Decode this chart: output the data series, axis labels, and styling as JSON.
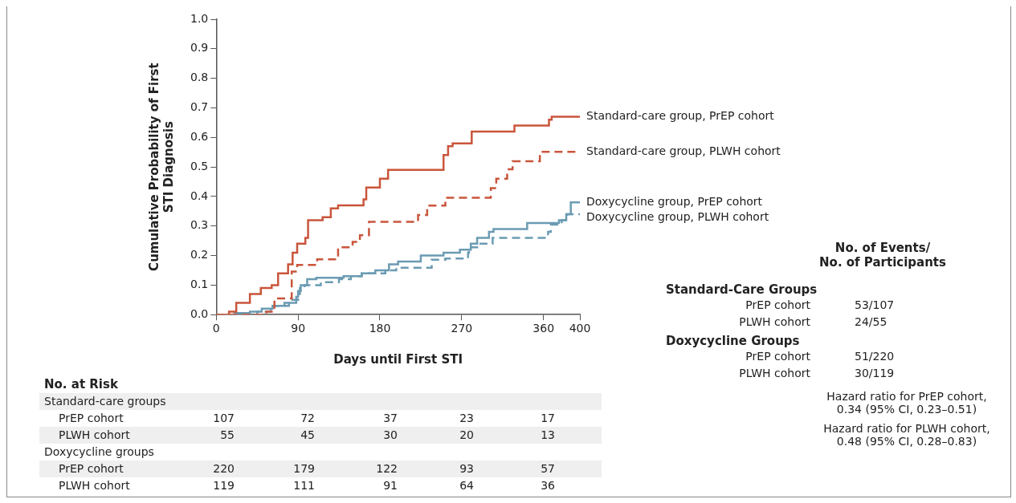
{
  "chart_data": {
    "type": "step",
    "xlabel": "Days until First STI",
    "ylabel": "Cumulative Probability of First\nSTI Diagnosis",
    "xlim": [
      0,
      400
    ],
    "xticks": [
      0,
      90,
      180,
      270,
      360,
      400
    ],
    "ylim": [
      0,
      1
    ],
    "yticks": [
      {
        "value": 0,
        "label": "0.0"
      },
      0.1,
      0.2,
      0.3,
      0.4,
      0.5,
      0.6,
      0.7,
      0.8,
      0.9,
      {
        "value": 1,
        "label": "1.0"
      }
    ],
    "grid": false,
    "legend": false,
    "series": [
      {
        "name": "Standard-care group, PrEP cohort",
        "color": "#c9553b",
        "line_style": "solid",
        "x": [
          0,
          14,
          22,
          37,
          49,
          61,
          68,
          79,
          84,
          89,
          98,
          101,
          117,
          126,
          134,
          162,
          165,
          180,
          189,
          250,
          255,
          260,
          281,
          328,
          366,
          369,
          400
        ],
        "values": [
          0,
          0.01,
          0.04,
          0.07,
          0.09,
          0.1,
          0.14,
          0.17,
          0.21,
          0.24,
          0.26,
          0.32,
          0.33,
          0.36,
          0.37,
          0.39,
          0.43,
          0.46,
          0.49,
          0.54,
          0.57,
          0.58,
          0.62,
          0.64,
          0.66,
          0.67,
          0.67
        ]
      },
      {
        "name": "Standard-care group, PLWH cohort",
        "color": "#c9553b",
        "line_style": "dashed",
        "x": [
          0,
          55,
          64,
          83,
          89,
          111,
          134,
          150,
          158,
          168,
          222,
          232,
          252,
          302,
          308,
          320,
          326,
          356,
          400
        ],
        "values": [
          0,
          0.01,
          0.055,
          0.146,
          0.168,
          0.187,
          0.228,
          0.246,
          0.269,
          0.314,
          0.337,
          0.369,
          0.396,
          0.428,
          0.46,
          0.492,
          0.519,
          0.551,
          0.551
        ]
      },
      {
        "name": "Doxycycline group, PrEP cohort",
        "color": "#6b9bb2",
        "line_style": "solid",
        "x": [
          0,
          20,
          37,
          50,
          62,
          75,
          88,
          90,
          93,
          100,
          110,
          140,
          160,
          175,
          190,
          200,
          225,
          250,
          268,
          280,
          287,
          300,
          305,
          342,
          377,
          385,
          390,
          400
        ],
        "values": [
          0,
          0.005,
          0.01,
          0.02,
          0.03,
          0.04,
          0.06,
          0.08,
          0.1,
          0.12,
          0.125,
          0.13,
          0.14,
          0.15,
          0.17,
          0.18,
          0.2,
          0.21,
          0.22,
          0.24,
          0.26,
          0.28,
          0.29,
          0.31,
          0.32,
          0.34,
          0.38,
          0.38
        ]
      },
      {
        "name": "Doxycycline group, PLWH cohort",
        "color": "#6b9bb2",
        "line_style": "dashed",
        "x": [
          0,
          45,
          60,
          80,
          90,
          92,
          97,
          115,
          135,
          148,
          160,
          186,
          198,
          237,
          252,
          277,
          278,
          287,
          304,
          365,
          368,
          380,
          386,
          400
        ],
        "values": [
          0,
          0.01,
          0.03,
          0.05,
          0.07,
          0.09,
          0.1,
          0.11,
          0.12,
          0.13,
          0.14,
          0.15,
          0.159,
          0.186,
          0.19,
          0.21,
          0.228,
          0.24,
          0.26,
          0.28,
          0.305,
          0.32,
          0.34,
          0.34
        ]
      }
    ],
    "annotations": [
      "No. at Risk",
      "Standard-care groups",
      "PrEP cohort\t107\t72\t37\t23\t17",
      "PLWH cohort\t55\t45\t30\t20\t13",
      "Doxycycline groups",
      "PrEP cohort\t220\t179\t122\t93\t57",
      "PLWH cohort\t119\t111\t91\t64\t36",
      "No. of Events/\nNo. of Participants",
      "Standard-Care Groups",
      "PrEP cohort\t53/107",
      "PLWH cohort\t24/55",
      "Doxycycline Groups",
      "PrEP cohort\t51/220",
      "PLWH cohort\t30/119",
      "Hazard ratio for PrEP cohort,\n0.34 (95% CI, 0.23–0.51)",
      "Hazard ratio for PLWH cohort,\n0.48 (95% CI, 0.28–0.83)"
    ]
  }
}
